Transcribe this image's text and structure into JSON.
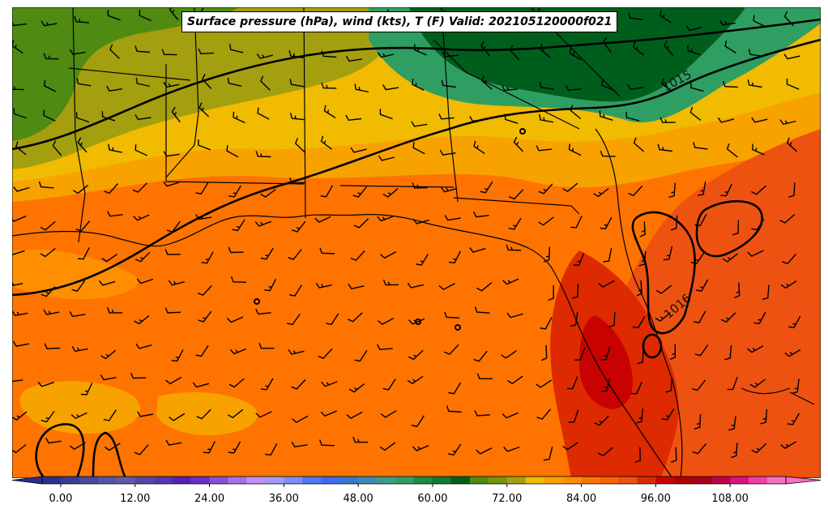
{
  "title": "Surface pressure (hPa), wind (kts), T (F) Valid: 202105120000f021",
  "colors": {
    "cold_green_dark": "#005e1c",
    "green": "#2f9e62",
    "olive_green": "#4f8a12",
    "olive": "#a49f0e",
    "yellow": "#f0bb00",
    "orange_light": "#f8a200",
    "orange": "#ff7400",
    "orange_red": "#ee5210",
    "red": "#dd2a00",
    "dark_red": "#c80200"
  },
  "pressure_contours": [
    {
      "label": "1015"
    },
    {
      "label": "1016"
    }
  ],
  "colorbar": {
    "ticks": [
      "0.00",
      "12.00",
      "24.00",
      "36.00",
      "48.00",
      "60.00",
      "72.00",
      "84.00",
      "96.00",
      "108.00"
    ],
    "min": -3,
    "max": 117,
    "step": 3,
    "colors": [
      "#2d2f8d",
      "#3a3c96",
      "#4848a0",
      "#5656a6",
      "#5e5aa4",
      "#524aa8",
      "#5538b0",
      "#5520b4",
      "#6a2fc6",
      "#8850d8",
      "#a870e6",
      "#c090f4",
      "#a69af8",
      "#7c8ff8",
      "#5278f4",
      "#3e6cee",
      "#3878c8",
      "#3b8cb4",
      "#3b9c8c",
      "#2f9e62",
      "#1a8c48",
      "#0f7a34",
      "#005e1c",
      "#4f8a12",
      "#78940e",
      "#a49f0e",
      "#f0bb00",
      "#f8a200",
      "#ff8f00",
      "#ff7400",
      "#ff6200",
      "#ee5210",
      "#dd2a00",
      "#c80200",
      "#b20000",
      "#a6001a",
      "#c00048",
      "#dd1080",
      "#f040a8",
      "#f870c4"
    ]
  }
}
